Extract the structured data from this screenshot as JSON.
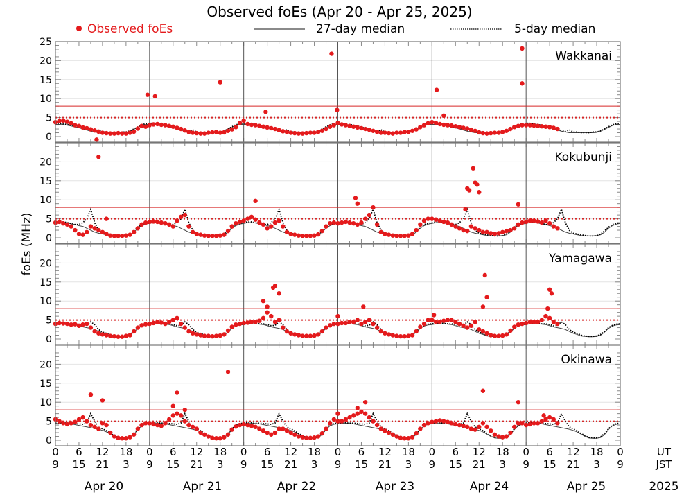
{
  "chart_data": {
    "type": "scatter",
    "title": "Observed foEs (Apr 20 - Apr 25, 2025)",
    "ylabel": "foEs (MHz)",
    "legend": {
      "placement": "top",
      "observed": "Observed foEs",
      "median27": "27-day median",
      "median5": "5-day median"
    },
    "colors": {
      "observed": "#e41a1c",
      "median27": "#444444",
      "median5": "#000000",
      "threshold": "#d62728"
    },
    "ylim": [
      -1.5,
      25
    ],
    "thresholds": {
      "solid": 8,
      "dotted": 5
    },
    "x_unit": "hours since Apr 20 00 UT",
    "x_ticks": {
      "ut": [
        "0",
        "6",
        "12",
        "18",
        "0",
        "6",
        "12",
        "18",
        "0",
        "6",
        "12",
        "18",
        "0",
        "6",
        "12",
        "18",
        "0",
        "6",
        "12",
        "18",
        "0",
        "6",
        "12",
        "18",
        "0"
      ],
      "jst": [
        "9",
        "15",
        "21",
        "3",
        "9",
        "15",
        "21",
        "3",
        "9",
        "15",
        "21",
        "3",
        "9",
        "15",
        "21",
        "3",
        "9",
        "15",
        "21",
        "3",
        "9",
        "15",
        "21",
        "3",
        "9"
      ],
      "ut_label": "UT",
      "jst_label": "JST"
    },
    "days": [
      "Apr 20",
      "Apr 21",
      "Apr 22",
      "Apr 23",
      "Apr 24",
      "Apr 25"
    ],
    "year": "2025",
    "stations": [
      {
        "name": "Wakkanai",
        "yticks": [
          "0",
          "5",
          "10",
          "15",
          "20",
          "25"
        ],
        "median27_hourly": [
          3.2,
          3.2,
          3.1,
          3,
          2.8,
          2.5,
          2.3,
          2,
          1.7,
          1.4,
          1.2,
          1,
          1,
          1,
          1,
          1,
          1,
          1,
          1.1,
          1.4,
          1.9,
          2.4,
          2.9,
          3.2
        ],
        "median5_hourly": [
          3.5,
          3.5,
          3.3,
          3.2,
          3,
          2.8,
          2.5,
          2.2,
          2,
          1.6,
          1.3,
          1.8,
          1.2,
          1.2,
          1,
          1,
          1,
          1.2,
          1.2,
          1.5,
          2,
          2.6,
          3.1,
          3.4
        ],
        "observed_hourly": [
          3.8,
          4.1,
          4.2,
          3.9,
          3.5,
          3.0,
          2.8,
          2.4,
          2.2,
          1.9,
          1.6,
          1.3,
          1.0,
          0.9,
          0.8,
          0.8,
          0.9,
          0.8,
          0.8,
          1.0,
          1.3,
          2.1,
          2.8,
          2.6,
          3.0,
          3.2,
          3.3,
          3.1,
          3.0,
          2.8,
          2.6,
          2.3,
          2.0,
          1.6,
          1.2,
          1.0,
          0.9,
          0.8,
          0.8,
          1.0,
          1.1,
          1.2,
          1.0,
          1.1,
          1.5,
          1.9,
          2.5,
          3.6,
          4.2,
          3.3,
          3.1,
          3.0,
          2.8,
          2.6,
          2.4,
          2.2,
          2.0,
          1.7,
          1.4,
          1.2,
          1.0,
          0.9,
          0.8,
          0.8,
          0.9,
          1.0,
          1.0,
          1.2,
          1.5,
          2.0,
          2.6,
          3.0,
          3.6,
          3.2,
          3.0,
          2.8,
          2.6,
          2.4,
          2.2,
          2.0,
          1.8,
          1.5,
          1.2,
          1.0,
          1.0,
          0.9,
          0.8,
          1.0,
          1.0,
          1.2,
          1.2,
          1.5,
          1.9,
          2.5,
          3.0,
          3.5,
          3.8,
          3.6,
          3.3,
          3.1,
          3.0,
          2.9,
          2.7,
          2.5,
          2.3,
          2.1,
          1.8,
          1.5,
          1.1,
          0.9,
          0.8,
          0.9,
          1.0,
          1.0,
          1.2,
          1.5,
          2.0,
          2.5,
          2.8,
          3.0,
          3.0,
          3.0,
          2.9,
          2.8,
          2.7,
          2.6,
          2.5,
          2.3,
          2.0
        ],
        "outliers": [
          [
            10.5,
            -0.8
          ],
          [
            23.5,
            11
          ],
          [
            25.4,
            10.6
          ],
          [
            42,
            14.3
          ],
          [
            53.6,
            6.5
          ],
          [
            70.4,
            21.8
          ],
          [
            71.8,
            7
          ],
          [
            97.2,
            12.3
          ],
          [
            99,
            5.5
          ],
          [
            119,
            23.2
          ],
          [
            119,
            14
          ]
        ]
      },
      {
        "name": "Kokubunji",
        "yticks": [
          "0",
          "5",
          "10",
          "15",
          "20"
        ],
        "median27_hourly": [
          3.8,
          4,
          4,
          3.9,
          3.7,
          3.5,
          3.2,
          3,
          2.5,
          2,
          1.5,
          1.2,
          1,
          0.8,
          0.6,
          0.5,
          0.5,
          0.5,
          0.6,
          0.8,
          1.5,
          2.5,
          3.2,
          3.6
        ],
        "median5_hourly": [
          4,
          4.2,
          4.2,
          4,
          3.8,
          3.5,
          3.5,
          4,
          5,
          7.5,
          4,
          2,
          1.2,
          1,
          0.8,
          0.6,
          0.5,
          0.5,
          0.6,
          1,
          1.8,
          2.8,
          3.5,
          3.8
        ],
        "observed_hourly": [
          4.0,
          4.2,
          3.8,
          3.5,
          3.0,
          2.0,
          1.0,
          0.8,
          1.5,
          3.0,
          2.5,
          2.0,
          1.5,
          1.0,
          0.6,
          0.5,
          0.5,
          0.5,
          0.6,
          0.8,
          1.5,
          2.5,
          3.5,
          4.0,
          4.2,
          4.3,
          4.2,
          4.0,
          3.8,
          3.5,
          3.0,
          4.5,
          5.5,
          6.0,
          3.0,
          1.5,
          1.0,
          0.8,
          0.6,
          0.5,
          0.5,
          0.5,
          0.6,
          0.8,
          1.8,
          3.0,
          3.8,
          4.2,
          4.5,
          5.0,
          5.5,
          4.8,
          4.0,
          3.5,
          2.5,
          3.0,
          4.0,
          4.5,
          3.0,
          1.5,
          1.0,
          0.8,
          0.6,
          0.5,
          0.5,
          0.5,
          0.6,
          0.9,
          1.8,
          3.0,
          3.8,
          4.0,
          3.8,
          4.0,
          4.2,
          4.0,
          3.8,
          3.5,
          4.0,
          5.0,
          6.0,
          8.0,
          3.5,
          1.5,
          1.0,
          0.8,
          0.6,
          0.5,
          0.5,
          0.5,
          0.6,
          1.0,
          2.0,
          3.5,
          4.5,
          5.0,
          5.0,
          4.8,
          4.5,
          4.2,
          4.0,
          3.5,
          3.0,
          2.5,
          2.0,
          1.8,
          3.0,
          2.5,
          2.0,
          1.5,
          1.5,
          1.2,
          1.0,
          1.2,
          1.5,
          1.8,
          2.0,
          2.5,
          3.5,
          4.0,
          4.2,
          4.5,
          4.5,
          4.3,
          4.0,
          4.5,
          3.8,
          3.0,
          2.5
        ],
        "outliers": [
          [
            11,
            21.3
          ],
          [
            13,
            5
          ],
          [
            51,
            9.7
          ],
          [
            76.5,
            10.5
          ],
          [
            77,
            9
          ],
          [
            105,
            13
          ],
          [
            105.5,
            12.5
          ],
          [
            106.5,
            18.3
          ],
          [
            107,
            14.5
          ],
          [
            107.5,
            14
          ],
          [
            108,
            12
          ],
          [
            104.5,
            7.5
          ],
          [
            118,
            8.8
          ]
        ]
      },
      {
        "name": "Yamagawa",
        "yticks": [
          "0",
          "5",
          "10",
          "15",
          "20"
        ],
        "median27_hourly": [
          3.8,
          4,
          4,
          4,
          3.9,
          3.8,
          3.5,
          3.2,
          3,
          2.8,
          2.5,
          2,
          1.5,
          1.2,
          0.8,
          0.7,
          0.6,
          0.6,
          0.7,
          1,
          1.8,
          2.8,
          3.4,
          3.7
        ],
        "median5_hourly": [
          4,
          4.2,
          4.2,
          4.1,
          4,
          4,
          3.8,
          3.5,
          3.6,
          4.5,
          3.8,
          2.5,
          1.8,
          1.5,
          1,
          0.8,
          0.7,
          0.7,
          0.8,
          1.2,
          2,
          3,
          3.6,
          3.9
        ],
        "observed_hourly": [
          4.0,
          4.2,
          4.1,
          4.0,
          3.8,
          3.9,
          3.5,
          3.8,
          4.0,
          3.0,
          2.0,
          1.5,
          1.2,
          1.0,
          0.8,
          0.7,
          0.6,
          0.6,
          0.8,
          1.0,
          2.0,
          3.0,
          3.6,
          3.9,
          4.0,
          4.2,
          4.5,
          4.3,
          4.0,
          4.5,
          5.0,
          5.5,
          4.0,
          3.0,
          2.0,
          1.5,
          1.2,
          1.0,
          0.8,
          0.8,
          0.7,
          0.8,
          0.9,
          1.2,
          2.2,
          3.2,
          3.8,
          4.0,
          4.2,
          4.3,
          4.5,
          4.5,
          4.8,
          5.5,
          7.0,
          6.0,
          4.5,
          5.0,
          3.0,
          2.0,
          1.5,
          1.2,
          1.0,
          0.8,
          0.8,
          0.8,
          0.9,
          1.2,
          2.0,
          3.0,
          3.6,
          4.0,
          4.0,
          4.2,
          4.2,
          4.5,
          4.5,
          5.0,
          4.0,
          4.5,
          5.0,
          4.0,
          3.0,
          2.0,
          1.5,
          1.2,
          1.0,
          0.8,
          0.7,
          0.7,
          0.8,
          1.0,
          2.0,
          3.2,
          4.0,
          5.0,
          5.0,
          4.5,
          4.5,
          4.8,
          5.0,
          5.0,
          4.5,
          4.0,
          3.5,
          3.0,
          3.5,
          4.5,
          2.5,
          2.0,
          1.5,
          1.0,
          0.8,
          0.8,
          0.9,
          1.2,
          2.2,
          3.2,
          3.8,
          4.0,
          4.2,
          4.5,
          4.5,
          4.5,
          5.0,
          6.0,
          5.5,
          4.5,
          4.0
        ],
        "outliers": [
          [
            53,
            10
          ],
          [
            54,
            8.5
          ],
          [
            55.5,
            13.5
          ],
          [
            56,
            14
          ],
          [
            57,
            12
          ],
          [
            72,
            6
          ],
          [
            78.5,
            8.5
          ],
          [
            96.5,
            6.3
          ],
          [
            109.5,
            16.8
          ],
          [
            110,
            11
          ],
          [
            109,
            8.5
          ],
          [
            126,
            13
          ],
          [
            126.5,
            12
          ],
          [
            125.5,
            8
          ]
        ]
      },
      {
        "name": "Okinawa",
        "yticks": [
          "0",
          "5",
          "10",
          "15",
          "20"
        ],
        "median27_hourly": [
          4.3,
          4.5,
          4.5,
          4.4,
          4.3,
          4.1,
          3.9,
          3.7,
          3.5,
          3.3,
          3.1,
          2.9,
          2.6,
          2.2,
          1.6,
          1,
          0.6,
          0.5,
          0.5,
          0.7,
          1.5,
          2.8,
          3.8,
          4.2
        ],
        "median5_hourly": [
          4.5,
          4.6,
          4.6,
          4.5,
          4.5,
          4.4,
          4.3,
          4.2,
          4.5,
          7,
          5,
          3.5,
          3,
          2.5,
          1.8,
          1.2,
          0.7,
          0.6,
          0.6,
          0.9,
          1.8,
          3,
          4,
          4.4
        ],
        "observed_hourly": [
          5.5,
          5.0,
          4.5,
          4.2,
          4.5,
          4.8,
          5.5,
          6.0,
          5.0,
          4.0,
          3.5,
          3.0,
          4.5,
          4.0,
          2.0,
          1.0,
          0.6,
          0.5,
          0.5,
          0.8,
          1.5,
          3.0,
          4.0,
          4.5,
          4.5,
          4.2,
          4.0,
          3.8,
          4.5,
          5.5,
          6.5,
          7.0,
          6.5,
          5.0,
          4.0,
          3.5,
          3.0,
          2.0,
          1.5,
          1.0,
          0.6,
          0.5,
          0.5,
          0.8,
          1.5,
          2.8,
          3.6,
          4.0,
          4.2,
          4.0,
          3.8,
          3.5,
          3.0,
          2.5,
          2.0,
          1.5,
          2.0,
          3.0,
          3.0,
          2.5,
          2.0,
          1.5,
          1.0,
          0.8,
          0.6,
          0.6,
          0.7,
          1.0,
          1.8,
          3.0,
          4.5,
          5.5,
          5.0,
          5.0,
          5.5,
          6.0,
          6.5,
          7.0,
          7.5,
          7.0,
          6.0,
          5.0,
          4.0,
          3.0,
          2.5,
          2.0,
          1.5,
          1.0,
          0.6,
          0.5,
          0.5,
          0.8,
          1.8,
          3.0,
          4.0,
          4.5,
          4.8,
          5.0,
          5.2,
          5.0,
          4.8,
          4.5,
          4.2,
          4.0,
          3.8,
          3.5,
          3.0,
          2.8,
          3.5,
          4.5,
          3.5,
          2.5,
          1.5,
          1.0,
          0.8,
          1.0,
          2.0,
          3.5,
          4.5,
          4.5,
          4.0,
          4.2,
          4.5,
          4.5,
          5.0,
          5.5,
          6.0,
          5.5,
          4.5
        ],
        "outliers": [
          [
            9,
            12
          ],
          [
            12,
            10.5
          ],
          [
            31,
            12.5
          ],
          [
            30,
            9
          ],
          [
            33,
            8
          ],
          [
            44,
            18
          ],
          [
            72,
            7
          ],
          [
            79,
            10
          ],
          [
            77,
            8.5
          ],
          [
            109,
            13
          ],
          [
            118,
            10
          ],
          [
            124.5,
            6.5
          ]
        ]
      }
    ]
  }
}
